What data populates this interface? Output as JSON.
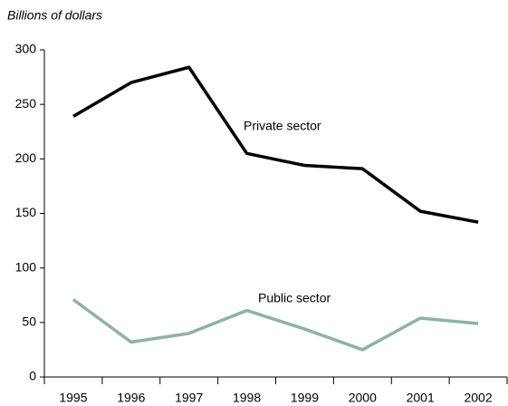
{
  "chart_data": {
    "type": "line",
    "y_axis_label": "Billions of dollars",
    "categories": [
      "1995",
      "1996",
      "1997",
      "1998",
      "1999",
      "2000",
      "2001",
      "2002"
    ],
    "series": [
      {
        "name": "Private sector",
        "color": "#000000",
        "values": [
          239,
          270,
          284,
          205,
          194,
          191,
          152,
          142
        ]
      },
      {
        "name": "Public sector",
        "color": "#8fb2a5",
        "values": [
          71,
          32,
          40,
          61,
          44,
          25,
          54,
          49
        ]
      }
    ],
    "ylim": [
      0,
      300
    ],
    "yticks": [
      0,
      50,
      100,
      150,
      200,
      250,
      300
    ],
    "grid": false
  }
}
